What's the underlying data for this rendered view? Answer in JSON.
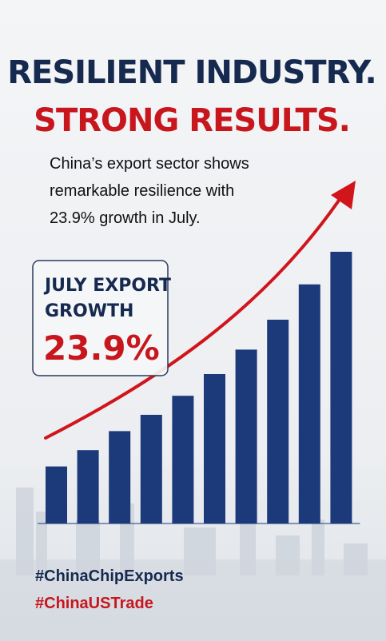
{
  "headline": {
    "line1": "RESILIENT INDUSTRY.",
    "line2": "STRONG RESULTS."
  },
  "subtitle": {
    "lines": [
      "China’s export sector shows",
      "remarkable resilience with",
      "23.9% growth in July."
    ]
  },
  "callout": {
    "label_lines": [
      "JULY EXPORT",
      "GROWTH"
    ],
    "value": "23.9%"
  },
  "hashtags": [
    "#ChinaChipExports",
    "#ChinaUSTrade"
  ],
  "chart_data": {
    "type": "bar",
    "categories": [
      null,
      null,
      null,
      null,
      null,
      null,
      null,
      null,
      null,
      null
    ],
    "values": [
      21,
      27,
      34,
      40,
      47,
      55,
      64,
      75,
      88,
      100
    ],
    "color": "#1c3a7a",
    "ylim": [
      0,
      100
    ],
    "trend_color": "#d0151b"
  }
}
